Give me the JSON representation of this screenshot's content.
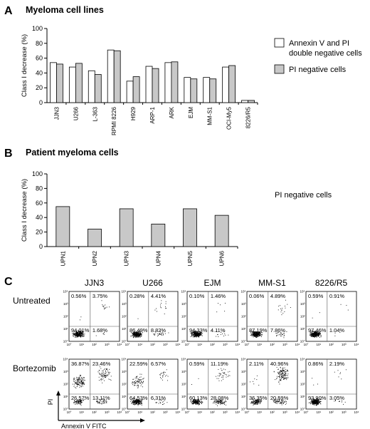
{
  "colors": {
    "bar_annexin": "#ffffff",
    "bar_pi": "#c8c8c8",
    "bar_stroke": "#000000",
    "dot": "#000000"
  },
  "panel_a": {
    "letter": "A",
    "title": "Myeloma cell lines"
  },
  "panel_b": {
    "letter": "B",
    "title": "Patient myeloma cells"
  },
  "panel_c": {
    "letter": "C",
    "x_axis_label": "Annexin V FITC",
    "y_axis_label": "PI",
    "tick_labels": [
      "10°",
      "10¹",
      "10²",
      "10³",
      "10⁴"
    ],
    "columns": [
      "JJN3",
      "U266",
      "EJM",
      "MM-S1",
      "8226/R5"
    ],
    "rows": [
      {
        "label": "Untreated",
        "plots": [
          {
            "ul": "0.56%",
            "ur": "3.75%",
            "ll": "94.01%",
            "lr": "1.68%"
          },
          {
            "ul": "0.28%",
            "ur": "4.41%",
            "ll": "86.49%",
            "lr": "8.82%"
          },
          {
            "ul": "0.10%",
            "ur": "1.46%",
            "ll": "94.33%",
            "lr": "4.11%"
          },
          {
            "ul": "0.06%",
            "ur": "4.89%",
            "ll": "87.19%",
            "lr": "7.86%"
          },
          {
            "ul": "0.59%",
            "ur": "0.91%",
            "ll": "97.46%",
            "lr": "1.04%"
          }
        ]
      },
      {
        "label": "Bortezomib",
        "plots": [
          {
            "ul": "36.87%",
            "ur": "23.46%",
            "ll": "26.57%",
            "lr": "13.11%"
          },
          {
            "ul": "22.59%",
            "ur": "6.57%",
            "ll": "64.53%",
            "lr": "6.31%"
          },
          {
            "ul": "0.59%",
            "ur": "11.19%",
            "ll": "60.13%",
            "lr": "28.08%"
          },
          {
            "ul": "2.11%",
            "ur": "40.96%",
            "ll": "36.35%",
            "lr": "20.59%"
          },
          {
            "ul": "0.86%",
            "ur": "2.19%",
            "ll": "93.90%",
            "lr": "3.05%"
          }
        ]
      }
    ]
  },
  "chart_data": [
    {
      "type": "bar",
      "title": "Myeloma cell lines",
      "ylabel": "Class I decrease (%)",
      "ylim": [
        0,
        100
      ],
      "yticks": [
        0,
        20,
        40,
        60,
        80,
        100
      ],
      "categories": [
        "JJN3",
        "U266",
        "L-363",
        "RPMI 8226",
        "H929",
        "ARP-1",
        "ARK",
        "EJM",
        "MM-S1",
        "OCI-My5",
        "8226/R5"
      ],
      "series": [
        {
          "name": "Annexin V and PI double negative cells",
          "values": [
            54,
            48,
            43,
            71,
            29,
            49,
            54,
            34,
            34,
            48,
            3
          ]
        },
        {
          "name": "PI negative cells",
          "values": [
            52,
            53,
            38,
            70,
            35,
            46,
            55,
            32,
            32,
            50,
            3
          ]
        }
      ],
      "legend_lines": [
        "Annexin V and PI",
        "double negative cells",
        "PI negative cells"
      ],
      "legend_position": "right"
    },
    {
      "type": "bar",
      "title": "Patient myeloma cells",
      "ylabel": "Class I decrease (%)",
      "ylim": [
        0,
        100
      ],
      "yticks": [
        0,
        20,
        40,
        60,
        80,
        100
      ],
      "categories": [
        "UPN1",
        "UPN2",
        "UPN3",
        "UPN4",
        "UPN5",
        "UPN6"
      ],
      "series": [
        {
          "name": "PI negative cells",
          "values": [
            55,
            24,
            52,
            31,
            52,
            43
          ]
        }
      ],
      "annotation": "PI negative cells"
    }
  ]
}
